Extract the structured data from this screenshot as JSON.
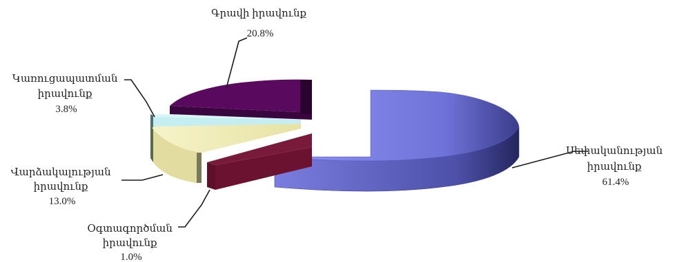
{
  "chart_data": {
    "type": "pie",
    "title": "",
    "legend": "none",
    "slices": [
      {
        "label": [
          "Սեփականության",
          "իրավունք"
        ],
        "value": 61.4,
        "value_label": "61.4%",
        "color": "#8f8ff0"
      },
      {
        "label": [
          "Օգտագործման",
          "իրավունք"
        ],
        "value": 1.0,
        "value_label": "1.0%",
        "color": "#7a1a3a"
      },
      {
        "label": [
          "Վարձակալության",
          "իրավունք"
        ],
        "value": 13.0,
        "value_label": "13.0%",
        "color": "#f4f0c0"
      },
      {
        "label": [
          "Կառուցապատման",
          "իրավունք"
        ],
        "value": 3.8,
        "value_label": "3.8%",
        "color": "#bfeef2"
      },
      {
        "label": [
          "Գրավի իրավունք"
        ],
        "value": 20.8,
        "value_label": "20.8%",
        "color": "#5a0a5e"
      }
    ]
  }
}
